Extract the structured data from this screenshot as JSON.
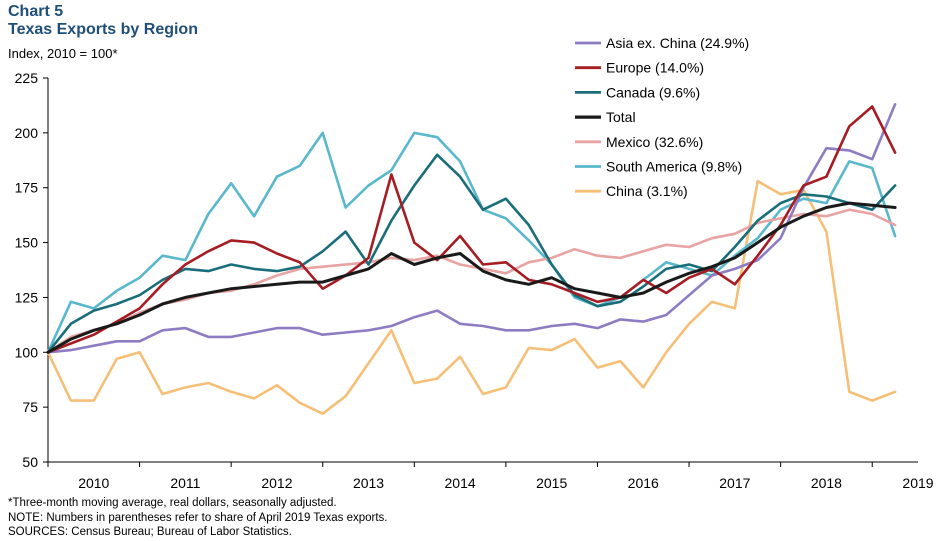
{
  "header": {
    "chart_number": "Chart 5",
    "title": "Texas Exports by Region",
    "subtitle": "Index,  2010 = 100*"
  },
  "notes": [
    "*Three-month  moving average,  real dollars, seasonally adjusted.",
    "NOTE: Numbers in parentheses refer to share of April 2019 Texas exports.",
    "SOURCES: Census Bureau;  Bureau of Labor Statistics."
  ],
  "chart_data": {
    "type": "line",
    "title": "Texas Exports by Region",
    "ylabel": "Index,  2010 = 100*",
    "xlabel": "",
    "ylim": [
      50,
      225
    ],
    "yticks": [
      50,
      75,
      100,
      125,
      150,
      175,
      200,
      225
    ],
    "xlim": [
      2010,
      2019.5
    ],
    "xtick_labels": [
      "2010",
      "2011",
      "2012",
      "2013",
      "2014",
      "2015",
      "2016",
      "2017",
      "2018",
      "2019"
    ],
    "grid": false,
    "legend_position": "top-right",
    "series": [
      {
        "name": "Asia ex. China (24.9%)",
        "color": "#8e7cc3",
        "points": [
          [
            2010,
            100
          ],
          [
            2010.25,
            101
          ],
          [
            2010.5,
            103
          ],
          [
            2010.75,
            105
          ],
          [
            2011,
            105
          ],
          [
            2011.25,
            110
          ],
          [
            2011.5,
            111
          ],
          [
            2011.75,
            107
          ],
          [
            2012,
            107
          ],
          [
            2012.25,
            109
          ],
          [
            2012.5,
            111
          ],
          [
            2012.75,
            111
          ],
          [
            2013,
            108
          ],
          [
            2013.25,
            109
          ],
          [
            2013.5,
            110
          ],
          [
            2013.75,
            112
          ],
          [
            2014,
            116
          ],
          [
            2014.25,
            119
          ],
          [
            2014.5,
            113
          ],
          [
            2014.75,
            112
          ],
          [
            2015,
            110
          ],
          [
            2015.25,
            110
          ],
          [
            2015.5,
            112
          ],
          [
            2015.75,
            113
          ],
          [
            2016,
            111
          ],
          [
            2016.25,
            115
          ],
          [
            2016.5,
            114
          ],
          [
            2016.75,
            117
          ],
          [
            2017,
            126
          ],
          [
            2017.25,
            135
          ],
          [
            2017.5,
            138
          ],
          [
            2017.75,
            142
          ],
          [
            2018,
            152
          ],
          [
            2018.25,
            175
          ],
          [
            2018.5,
            193
          ],
          [
            2018.75,
            192
          ],
          [
            2019,
            188
          ],
          [
            2019.25,
            213
          ]
        ]
      },
      {
        "name": "Europe (14.0%)",
        "color": "#a61c23",
        "points": [
          [
            2010,
            100
          ],
          [
            2010.25,
            104
          ],
          [
            2010.5,
            108
          ],
          [
            2010.75,
            114
          ],
          [
            2011,
            120
          ],
          [
            2011.25,
            131
          ],
          [
            2011.5,
            140
          ],
          [
            2011.75,
            146
          ],
          [
            2012,
            151
          ],
          [
            2012.25,
            150
          ],
          [
            2012.5,
            145
          ],
          [
            2012.75,
            141
          ],
          [
            2013,
            129
          ],
          [
            2013.25,
            135
          ],
          [
            2013.5,
            143
          ],
          [
            2013.75,
            181
          ],
          [
            2014,
            150
          ],
          [
            2014.25,
            142
          ],
          [
            2014.5,
            153
          ],
          [
            2014.75,
            140
          ],
          [
            2015,
            141
          ],
          [
            2015.25,
            133
          ],
          [
            2015.5,
            131
          ],
          [
            2015.75,
            127
          ],
          [
            2016,
            123
          ],
          [
            2016.25,
            125
          ],
          [
            2016.5,
            133
          ],
          [
            2016.75,
            127
          ],
          [
            2017,
            134
          ],
          [
            2017.25,
            138
          ],
          [
            2017.5,
            131
          ],
          [
            2017.75,
            144
          ],
          [
            2018,
            158
          ],
          [
            2018.25,
            176
          ],
          [
            2018.5,
            180
          ],
          [
            2018.75,
            203
          ],
          [
            2019,
            212
          ],
          [
            2019.25,
            191
          ]
        ]
      },
      {
        "name": "Canada (9.6%)",
        "color": "#1a6e7a",
        "points": [
          [
            2010,
            100
          ],
          [
            2010.25,
            113
          ],
          [
            2010.5,
            119
          ],
          [
            2010.75,
            122
          ],
          [
            2011,
            126
          ],
          [
            2011.25,
            133
          ],
          [
            2011.5,
            138
          ],
          [
            2011.75,
            137
          ],
          [
            2012,
            140
          ],
          [
            2012.25,
            138
          ],
          [
            2012.5,
            137
          ],
          [
            2012.75,
            139
          ],
          [
            2013,
            146
          ],
          [
            2013.25,
            155
          ],
          [
            2013.5,
            140
          ],
          [
            2013.75,
            160
          ],
          [
            2014,
            176
          ],
          [
            2014.25,
            190
          ],
          [
            2014.5,
            180
          ],
          [
            2014.75,
            165
          ],
          [
            2015,
            170
          ],
          [
            2015.25,
            158
          ],
          [
            2015.5,
            140
          ],
          [
            2015.75,
            126
          ],
          [
            2016,
            121
          ],
          [
            2016.25,
            123
          ],
          [
            2016.5,
            130
          ],
          [
            2016.75,
            138
          ],
          [
            2017,
            140
          ],
          [
            2017.25,
            137
          ],
          [
            2017.5,
            148
          ],
          [
            2017.75,
            160
          ],
          [
            2018,
            168
          ],
          [
            2018.25,
            172
          ],
          [
            2018.5,
            171
          ],
          [
            2018.75,
            168
          ],
          [
            2019,
            165
          ],
          [
            2019.25,
            176
          ]
        ]
      },
      {
        "name": "Total",
        "color": "#1a1a1a",
        "points": [
          [
            2010,
            100
          ],
          [
            2010.25,
            106
          ],
          [
            2010.5,
            110
          ],
          [
            2010.75,
            113
          ],
          [
            2011,
            117
          ],
          [
            2011.25,
            122
          ],
          [
            2011.5,
            125
          ],
          [
            2011.75,
            127
          ],
          [
            2012,
            129
          ],
          [
            2012.25,
            130
          ],
          [
            2012.5,
            131
          ],
          [
            2012.75,
            132
          ],
          [
            2013,
            132
          ],
          [
            2013.25,
            135
          ],
          [
            2013.5,
            138
          ],
          [
            2013.75,
            145
          ],
          [
            2014,
            140
          ],
          [
            2014.25,
            143
          ],
          [
            2014.5,
            145
          ],
          [
            2014.75,
            137
          ],
          [
            2015,
            133
          ],
          [
            2015.25,
            131
          ],
          [
            2015.5,
            134
          ],
          [
            2015.75,
            129
          ],
          [
            2016,
            127
          ],
          [
            2016.25,
            125
          ],
          [
            2016.5,
            127
          ],
          [
            2016.75,
            132
          ],
          [
            2017,
            136
          ],
          [
            2017.25,
            139
          ],
          [
            2017.5,
            143
          ],
          [
            2017.75,
            150
          ],
          [
            2018,
            157
          ],
          [
            2018.25,
            162
          ],
          [
            2018.5,
            166
          ],
          [
            2018.75,
            168
          ],
          [
            2019,
            167
          ],
          [
            2019.25,
            166
          ]
        ]
      },
      {
        "name": "Mexico (32.6%)",
        "color": "#e8a3a3",
        "points": [
          [
            2010,
            100
          ],
          [
            2010.25,
            107
          ],
          [
            2010.5,
            110
          ],
          [
            2010.75,
            113
          ],
          [
            2011,
            118
          ],
          [
            2011.25,
            122
          ],
          [
            2011.5,
            124
          ],
          [
            2011.75,
            127
          ],
          [
            2012,
            128
          ],
          [
            2012.25,
            131
          ],
          [
            2012.5,
            135
          ],
          [
            2012.75,
            138
          ],
          [
            2013,
            139
          ],
          [
            2013.25,
            140
          ],
          [
            2013.5,
            141
          ],
          [
            2013.75,
            143
          ],
          [
            2014,
            142
          ],
          [
            2014.25,
            144
          ],
          [
            2014.5,
            140
          ],
          [
            2014.75,
            138
          ],
          [
            2015,
            136
          ],
          [
            2015.25,
            141
          ],
          [
            2015.5,
            143
          ],
          [
            2015.75,
            147
          ],
          [
            2016,
            144
          ],
          [
            2016.25,
            143
          ],
          [
            2016.5,
            146
          ],
          [
            2016.75,
            149
          ],
          [
            2017,
            148
          ],
          [
            2017.25,
            152
          ],
          [
            2017.5,
            154
          ],
          [
            2017.75,
            159
          ],
          [
            2018,
            161
          ],
          [
            2018.25,
            163
          ],
          [
            2018.5,
            162
          ],
          [
            2018.75,
            165
          ],
          [
            2019,
            163
          ],
          [
            2019.25,
            158
          ]
        ]
      },
      {
        "name": "South America (9.8%)",
        "color": "#5ab8cc",
        "points": [
          [
            2010,
            100
          ],
          [
            2010.25,
            123
          ],
          [
            2010.5,
            120
          ],
          [
            2010.75,
            128
          ],
          [
            2011,
            134
          ],
          [
            2011.25,
            144
          ],
          [
            2011.5,
            142
          ],
          [
            2011.75,
            163
          ],
          [
            2012,
            177
          ],
          [
            2012.25,
            162
          ],
          [
            2012.5,
            180
          ],
          [
            2012.75,
            185
          ],
          [
            2013,
            200
          ],
          [
            2013.25,
            166
          ],
          [
            2013.5,
            176
          ],
          [
            2013.75,
            183
          ],
          [
            2014,
            200
          ],
          [
            2014.25,
            198
          ],
          [
            2014.5,
            187
          ],
          [
            2014.75,
            165
          ],
          [
            2015,
            161
          ],
          [
            2015.25,
            151
          ],
          [
            2015.5,
            140
          ],
          [
            2015.75,
            125
          ],
          [
            2016,
            121
          ],
          [
            2016.25,
            125
          ],
          [
            2016.5,
            133
          ],
          [
            2016.75,
            141
          ],
          [
            2017,
            138
          ],
          [
            2017.25,
            135
          ],
          [
            2017.5,
            144
          ],
          [
            2017.75,
            152
          ],
          [
            2018,
            165
          ],
          [
            2018.25,
            170
          ],
          [
            2018.5,
            168
          ],
          [
            2018.75,
            187
          ],
          [
            2019,
            184
          ],
          [
            2019.25,
            153
          ]
        ]
      },
      {
        "name": "China (3.1%)",
        "color": "#f6bf78",
        "points": [
          [
            2010,
            100
          ],
          [
            2010.25,
            78
          ],
          [
            2010.5,
            78
          ],
          [
            2010.75,
            97
          ],
          [
            2011,
            100
          ],
          [
            2011.25,
            81
          ],
          [
            2011.5,
            84
          ],
          [
            2011.75,
            86
          ],
          [
            2012,
            82
          ],
          [
            2012.25,
            79
          ],
          [
            2012.5,
            85
          ],
          [
            2012.75,
            77
          ],
          [
            2013,
            72
          ],
          [
            2013.25,
            80
          ],
          [
            2013.5,
            95
          ],
          [
            2013.75,
            110
          ],
          [
            2014,
            86
          ],
          [
            2014.25,
            88
          ],
          [
            2014.5,
            98
          ],
          [
            2014.75,
            81
          ],
          [
            2015,
            84
          ],
          [
            2015.25,
            102
          ],
          [
            2015.5,
            101
          ],
          [
            2015.75,
            106
          ],
          [
            2016,
            93
          ],
          [
            2016.25,
            96
          ],
          [
            2016.5,
            84
          ],
          [
            2016.75,
            100
          ],
          [
            2017,
            113
          ],
          [
            2017.25,
            123
          ],
          [
            2017.5,
            120
          ],
          [
            2017.75,
            178
          ],
          [
            2018,
            172
          ],
          [
            2018.25,
            174
          ],
          [
            2018.5,
            155
          ],
          [
            2018.75,
            82
          ],
          [
            2019,
            78
          ],
          [
            2019.25,
            82
          ]
        ]
      }
    ]
  }
}
